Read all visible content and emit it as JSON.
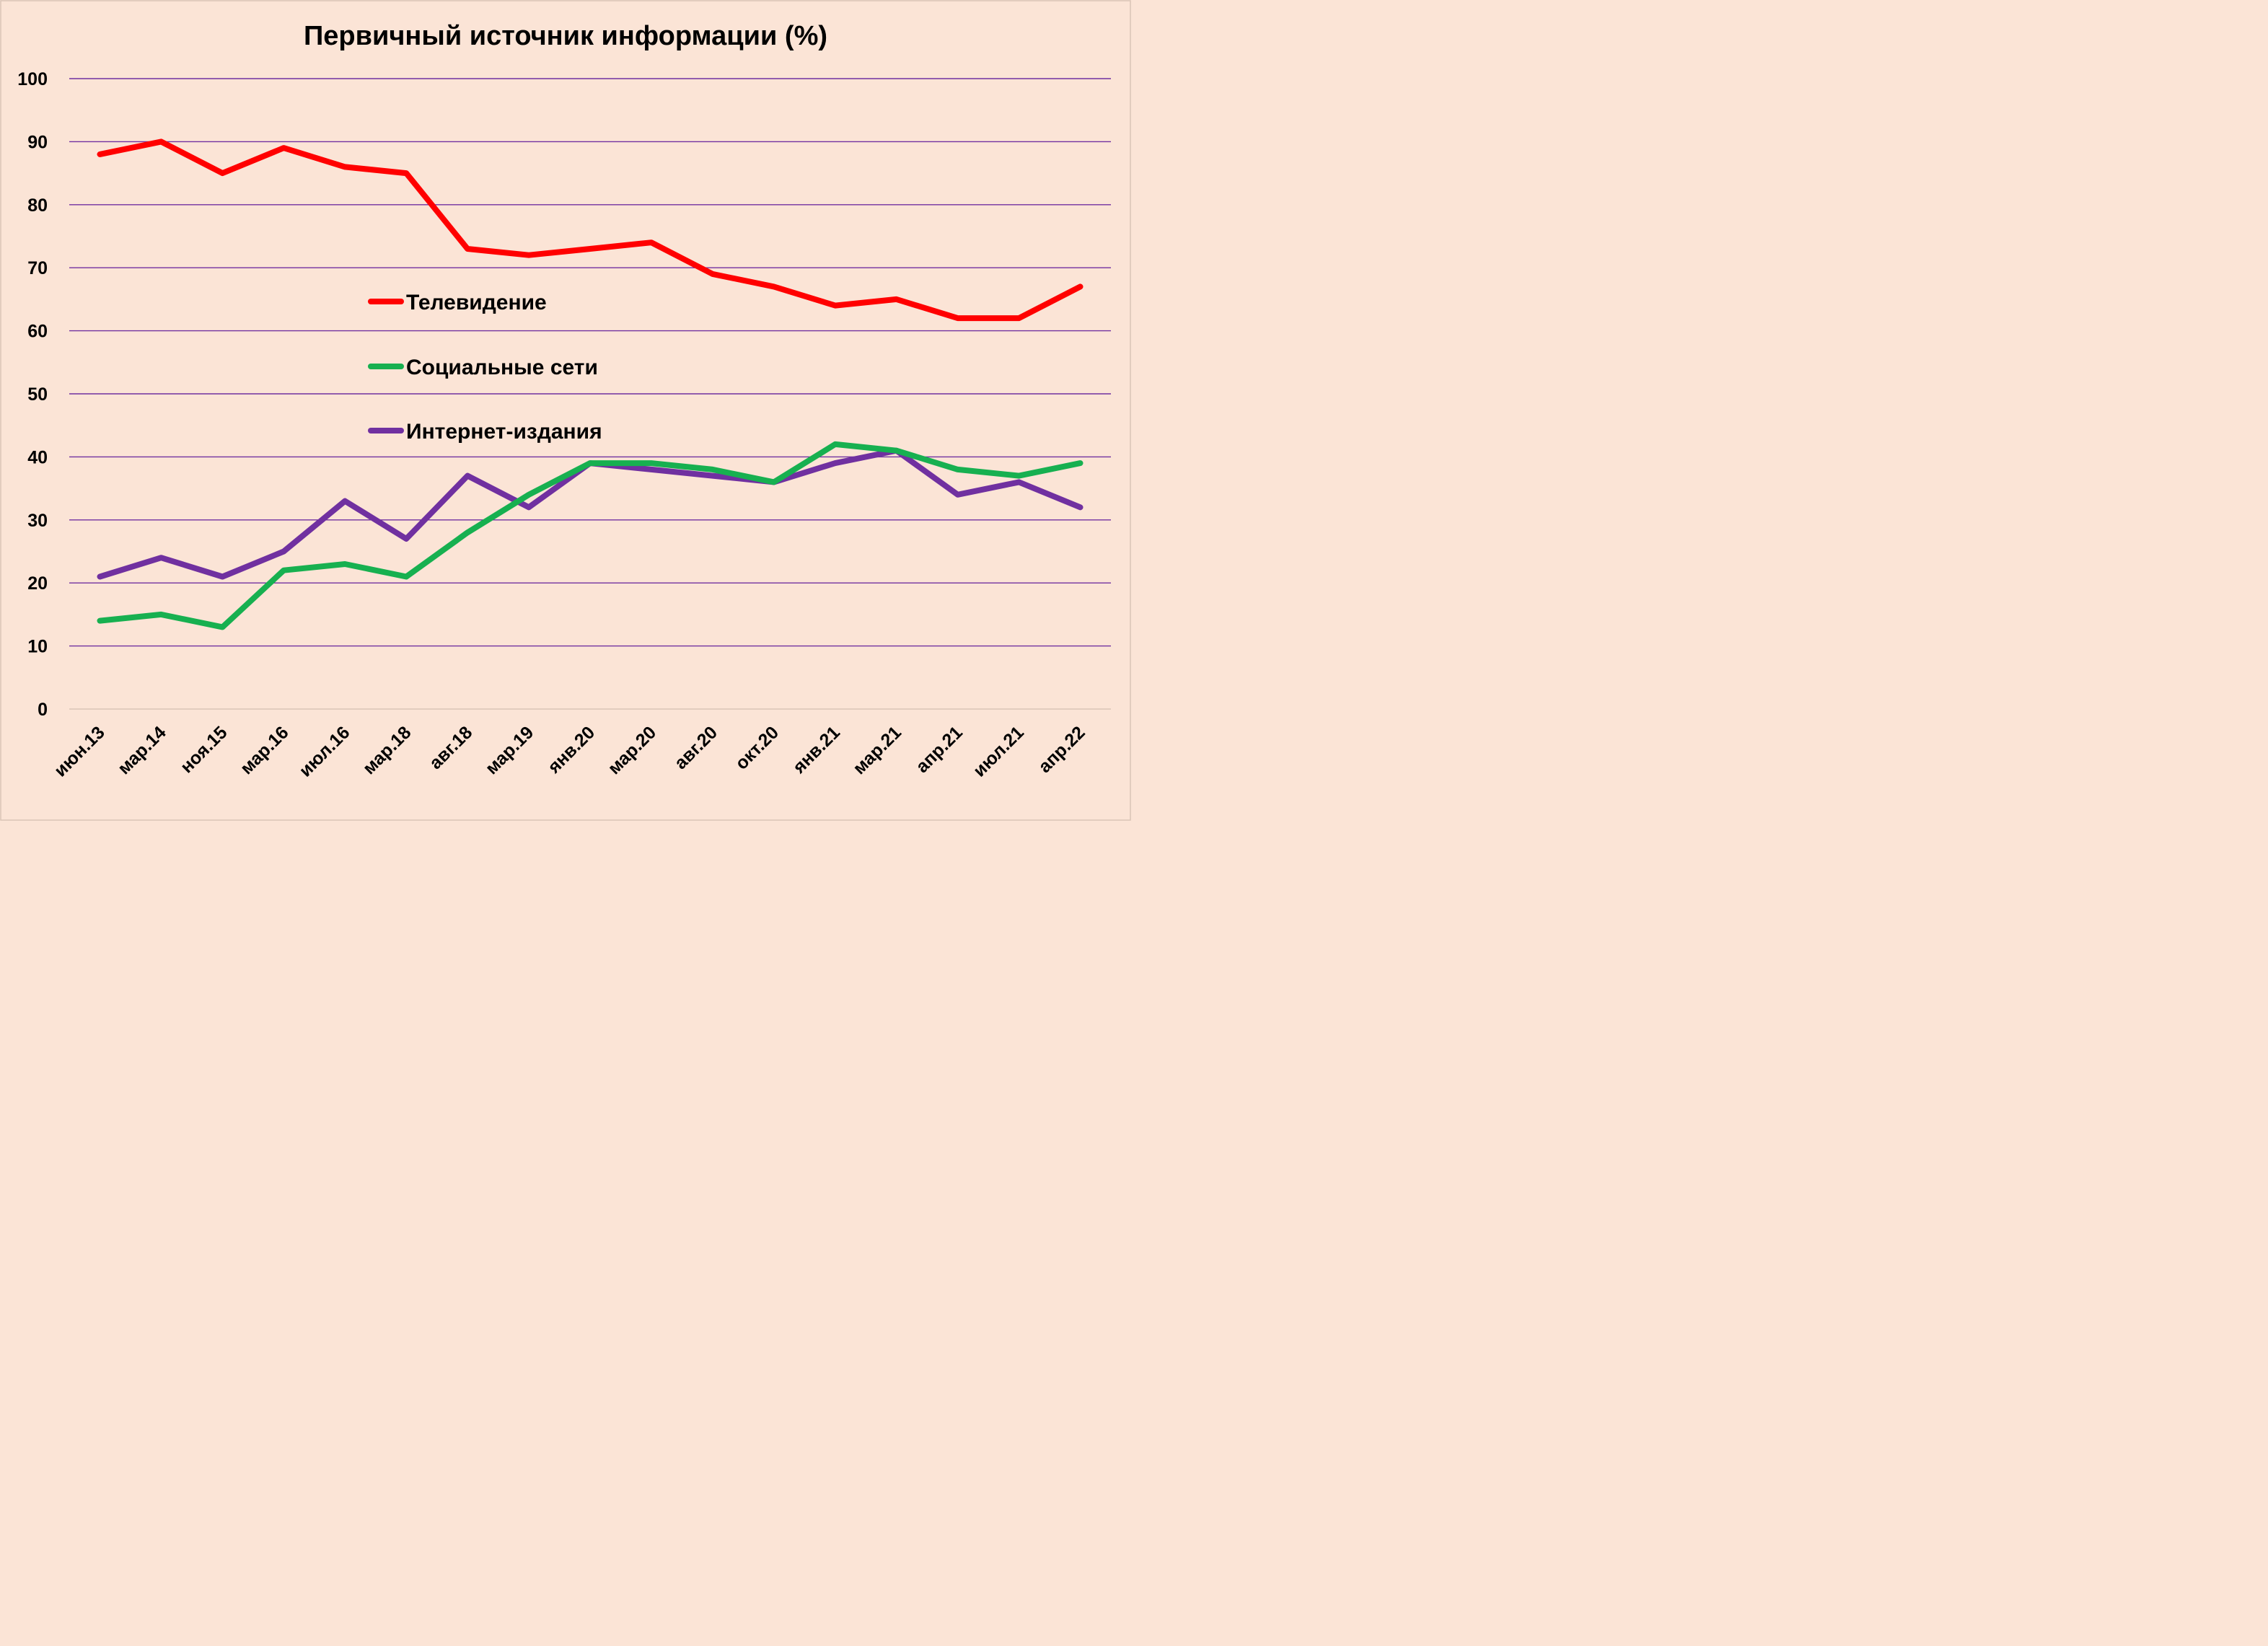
{
  "chart_data": {
    "type": "line",
    "title": "Первичный источник информации (%)",
    "xlabel": "",
    "ylabel": "",
    "ylim": [
      0,
      100
    ],
    "y_ticks": [
      0,
      10,
      20,
      30,
      40,
      50,
      60,
      70,
      80,
      90,
      100
    ],
    "grid": true,
    "legend_position": "center-left",
    "categories": [
      "июн.13",
      "мар.14",
      "ноя.15",
      "мар.16",
      "июл.16",
      "мар.18",
      "авг.18",
      "мар.19",
      "янв.20",
      "мар.20",
      "авг.20",
      "окт.20",
      "янв.21",
      "мар.21",
      "апр.21",
      "июл.21",
      "апр.22"
    ],
    "series": [
      {
        "name": "Телевидение",
        "color": "#ff0000",
        "values": [
          88,
          90,
          85,
          89,
          86,
          85,
          73,
          72,
          73,
          74,
          69,
          67,
          64,
          65,
          62,
          62,
          67
        ]
      },
      {
        "name": "Социальные сети",
        "color": "#17b050",
        "values": [
          14,
          15,
          13,
          22,
          23,
          21,
          28,
          34,
          39,
          39,
          38,
          36,
          42,
          41,
          38,
          37,
          39
        ]
      },
      {
        "name": "Интернет-издания",
        "color": "#7030a0",
        "values": [
          21,
          24,
          21,
          25,
          33,
          27,
          37,
          32,
          39,
          38,
          37,
          36,
          39,
          41,
          34,
          36,
          32
        ]
      }
    ]
  }
}
